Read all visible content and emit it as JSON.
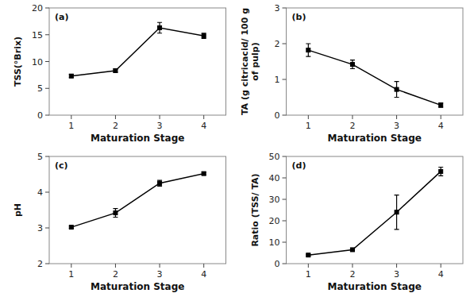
{
  "chart_data": [
    {
      "type": "line",
      "x": [
        1,
        2,
        3,
        4
      ],
      "values": [
        7.3,
        8.3,
        16.3,
        14.8
      ],
      "errors": [
        0.3,
        0.3,
        1.0,
        0.5
      ],
      "xlim": [
        0.5,
        4.5
      ],
      "xticks": [
        1,
        2,
        3,
        4
      ],
      "ylim": [
        0,
        20
      ],
      "yticks": [
        0,
        5,
        10,
        15,
        20
      ],
      "x_label": "Maturation Stage",
      "y_label": "TSS(°Brix)",
      "annotation": "(a)",
      "color": "black",
      "marker": "square"
    },
    {
      "type": "line",
      "x": [
        1,
        2,
        3,
        4
      ],
      "values": [
        1.82,
        1.42,
        0.72,
        0.28
      ],
      "errors": [
        0.18,
        0.12,
        0.22,
        0.06
      ],
      "xlim": [
        0.5,
        4.5
      ],
      "xticks": [
        1,
        2,
        3,
        4
      ],
      "ylim": [
        0,
        3
      ],
      "yticks": [
        0,
        1,
        2,
        3
      ],
      "x_label": "Maturation Stage",
      "y_label": "TA (g citricacid/ 100 g\nof pulp)",
      "annotation": "(b)",
      "color": "black",
      "marker": "square"
    },
    {
      "type": "line",
      "x": [
        1,
        2,
        3,
        4
      ],
      "values": [
        3.02,
        3.42,
        4.25,
        4.52
      ],
      "errors": [
        0.03,
        0.12,
        0.08,
        0.04
      ],
      "xlim": [
        0.5,
        4.5
      ],
      "xticks": [
        1,
        2,
        3,
        4
      ],
      "ylim": [
        2,
        5
      ],
      "yticks": [
        2,
        3,
        4,
        5
      ],
      "x_label": "Maturation Stage",
      "y_label": "pH",
      "annotation": "(c)",
      "color": "black",
      "marker": "square"
    },
    {
      "type": "line",
      "x": [
        1,
        2,
        3,
        4
      ],
      "values": [
        4.0,
        6.5,
        24.0,
        43.0
      ],
      "errors": [
        0.4,
        0.6,
        8.0,
        2.0
      ],
      "xlim": [
        0.5,
        4.5
      ],
      "xticks": [
        1,
        2,
        3,
        4
      ],
      "ylim": [
        0,
        50
      ],
      "yticks": [
        0,
        10,
        20,
        30,
        40,
        50
      ],
      "x_label": "Maturation Stage",
      "y_label": "Ratio (TSS/ TA)",
      "annotation": "(d)",
      "color": "black",
      "marker": "square"
    }
  ]
}
